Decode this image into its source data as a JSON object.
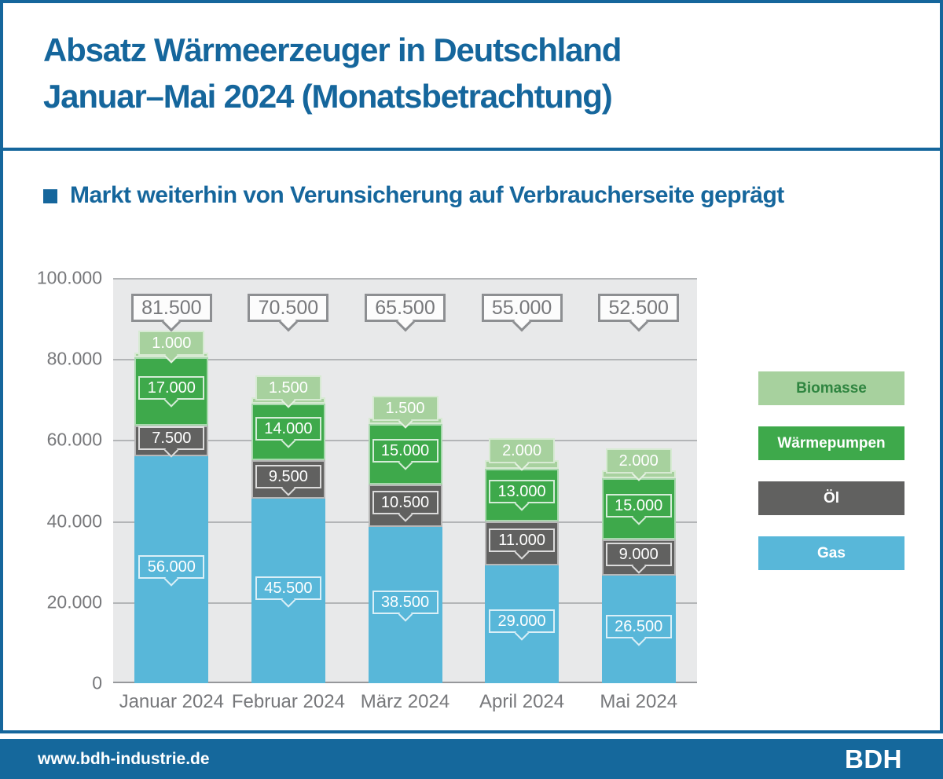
{
  "header": {
    "title_line1": "Absatz Wärmeerzeuger in Deutschland",
    "title_line2": "Januar–Mai 2024 (Monatsbetrachtung)"
  },
  "subtitle": "Markt weiterhin von Verunsicherung auf Verbraucherseite geprägt",
  "footer": {
    "url": "www.bdh-industrie.de",
    "logo": "BDH"
  },
  "colors": {
    "brand_blue": "#15669C",
    "plot_bg": "#E8E9EA",
    "grid": "#B3B5B7",
    "axis_text": "#77787B",
    "callout_border": "#8D8F92",
    "gas": "#58B7D9",
    "oil": "#616160",
    "heatpump": "#3EA94B",
    "biomass": "#A7D19E",
    "biomass_text": "#2F8540"
  },
  "chart_data": {
    "type": "bar",
    "stacked": true,
    "title": "Absatz Wärmeerzeuger in Deutschland Januar–Mai 2024 (Monatsbetrachtung)",
    "xlabel": "",
    "ylabel": "",
    "ylim": [
      0,
      100000
    ],
    "grid": true,
    "legend_position": "right",
    "categories": [
      "Januar 2024",
      "Februar 2024",
      "März 2024",
      "April 2024",
      "Mai 2024"
    ],
    "series": [
      {
        "name": "Gas",
        "color": "#58B7D9",
        "label_style": "inside",
        "values": [
          56000,
          45500,
          38500,
          29000,
          26500
        ],
        "labels": [
          "56.000",
          "45.500",
          "38.500",
          "29.000",
          "26.500"
        ]
      },
      {
        "name": "Öl",
        "color": "#616160",
        "label_style": "inside",
        "values": [
          7500,
          9500,
          10500,
          11000,
          9000
        ],
        "labels": [
          "7.500",
          "9.500",
          "10.500",
          "11.000",
          "9.000"
        ]
      },
      {
        "name": "Wärmepumpen",
        "color": "#3EA94B",
        "label_style": "inside",
        "values": [
          17000,
          14000,
          15000,
          13000,
          15000
        ],
        "labels": [
          "17.000",
          "14.000",
          "15.000",
          "13.000",
          "15.000"
        ]
      },
      {
        "name": "Biomasse",
        "color": "#A7D19E",
        "label_style": "above",
        "values": [
          1000,
          1500,
          1500,
          2000,
          2000
        ],
        "labels": [
          "1.000",
          "1.500",
          "1.500",
          "2.000",
          "2.000"
        ]
      }
    ],
    "totals": [
      81500,
      70500,
      65500,
      55000,
      52500
    ],
    "total_labels": [
      "81.500",
      "70.500",
      "65.500",
      "55.000",
      "52.500"
    ],
    "y_tick_values": [
      100000,
      80000,
      60000,
      40000,
      20000,
      0
    ],
    "y_tick_labels": [
      "100.000",
      "80.000",
      "60.000",
      "40.000",
      "20.000",
      "0"
    ],
    "legend": [
      {
        "label": "Biomasse",
        "color": "#A7D19E",
        "text_color": "#2F8540"
      },
      {
        "label": "Wärmepumpen",
        "color": "#3EA94B",
        "text_color": "#FFFFFF"
      },
      {
        "label": "Öl",
        "color": "#616160",
        "text_color": "#FFFFFF"
      },
      {
        "label": "Gas",
        "color": "#58B7D9",
        "text_color": "#FFFFFF"
      }
    ]
  }
}
